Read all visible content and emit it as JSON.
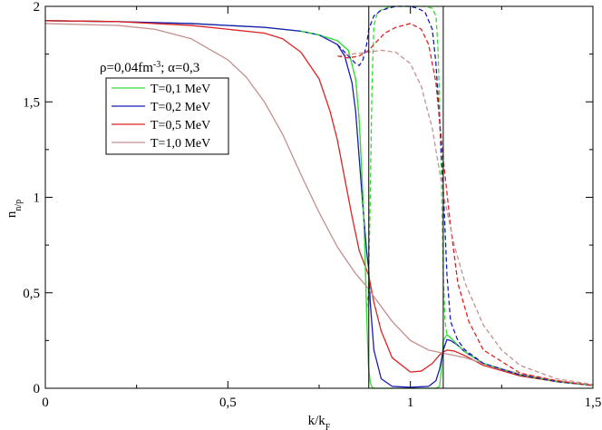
{
  "chart_data": {
    "type": "line",
    "title": "",
    "xlabel": "k/k",
    "xlabel_sub": "F",
    "ylabel": "n",
    "ylabel_sub": "n/p",
    "xlim": [
      0,
      1.5
    ],
    "ylim": [
      0,
      2
    ],
    "x_ticks": [
      0,
      0.5,
      1,
      1.5
    ],
    "x_tick_labels": [
      "0",
      "0,5",
      "1",
      "1,5"
    ],
    "y_ticks": [
      0,
      0.5,
      1,
      1.5,
      2
    ],
    "y_tick_labels": [
      "0",
      "0,5",
      "1",
      "1,5",
      "2"
    ],
    "grid": false,
    "annotation": {
      "rho": "ρ=0,04fm",
      "rho_exp": "-3",
      "alpha": "; α=0,3"
    },
    "legend_position": "upper-left",
    "vertical_lines": [
      0.886,
      1.09
    ],
    "colors": {
      "T01": "#33dd33",
      "T02": "#1a1ab8",
      "T05": "#dd2222",
      "T10": "#c49090",
      "vline": "#000000"
    },
    "series": [
      {
        "name": "T=0,1 MeV",
        "color": "#33dd33",
        "style": "solid",
        "x": [
          0,
          0.2,
          0.4,
          0.6,
          0.7,
          0.75,
          0.8,
          0.83,
          0.85,
          0.86,
          0.87,
          0.875,
          0.88,
          0.885,
          0.89,
          0.895,
          0.9,
          0.92,
          0.95,
          1.0,
          1.05,
          1.07,
          1.08,
          1.085,
          1.09,
          1.1,
          1.11,
          1.13,
          1.15,
          1.2,
          1.3,
          1.4,
          1.5
        ],
        "y": [
          1.925,
          1.92,
          1.91,
          1.89,
          1.87,
          1.85,
          1.82,
          1.77,
          1.62,
          1.4,
          1.0,
          0.75,
          0.4,
          0.12,
          0.03,
          0.005,
          0.0,
          0.0,
          0.0,
          0.0,
          0.0,
          0.0,
          0.01,
          0.1,
          0.25,
          0.28,
          0.265,
          0.225,
          0.19,
          0.13,
          0.07,
          0.035,
          0.015
        ]
      },
      {
        "name": "T=0,2 MeV",
        "color": "#1a1ab8",
        "style": "solid",
        "x": [
          0,
          0.2,
          0.4,
          0.6,
          0.7,
          0.75,
          0.8,
          0.82,
          0.84,
          0.85,
          0.86,
          0.87,
          0.88,
          0.886,
          0.89,
          0.9,
          0.92,
          0.95,
          1.0,
          1.05,
          1.07,
          1.08,
          1.09,
          1.1,
          1.11,
          1.13,
          1.15,
          1.2,
          1.3,
          1.4,
          1.5
        ],
        "y": [
          1.925,
          1.92,
          1.91,
          1.89,
          1.87,
          1.85,
          1.8,
          1.74,
          1.6,
          1.45,
          1.2,
          0.95,
          0.72,
          0.62,
          0.45,
          0.2,
          0.05,
          0.01,
          0.005,
          0.01,
          0.04,
          0.1,
          0.2,
          0.255,
          0.25,
          0.225,
          0.19,
          0.13,
          0.07,
          0.035,
          0.015
        ]
      },
      {
        "name": "T=0,5 MeV",
        "color": "#dd2222",
        "style": "solid",
        "x": [
          0,
          0.2,
          0.4,
          0.6,
          0.65,
          0.7,
          0.75,
          0.78,
          0.8,
          0.82,
          0.84,
          0.86,
          0.88,
          0.886,
          0.9,
          0.92,
          0.95,
          1.0,
          1.03,
          1.06,
          1.08,
          1.09,
          1.1,
          1.12,
          1.15,
          1.2,
          1.3,
          1.4,
          1.5
        ],
        "y": [
          1.925,
          1.92,
          1.9,
          1.86,
          1.83,
          1.76,
          1.62,
          1.45,
          1.3,
          1.1,
          0.9,
          0.72,
          0.62,
          0.59,
          0.45,
          0.3,
          0.16,
          0.085,
          0.09,
          0.13,
          0.175,
          0.19,
          0.2,
          0.195,
          0.17,
          0.12,
          0.065,
          0.035,
          0.015
        ]
      },
      {
        "name": "T=1,0 MeV",
        "color": "#c49090",
        "style": "solid",
        "x": [
          0,
          0.2,
          0.3,
          0.4,
          0.5,
          0.55,
          0.6,
          0.65,
          0.7,
          0.75,
          0.8,
          0.85,
          0.886,
          0.9,
          0.95,
          1.0,
          1.05,
          1.1,
          1.15,
          1.2,
          1.3,
          1.4,
          1.5
        ],
        "y": [
          1.91,
          1.9,
          1.88,
          1.83,
          1.72,
          1.63,
          1.5,
          1.33,
          1.12,
          0.92,
          0.74,
          0.6,
          0.52,
          0.48,
          0.35,
          0.25,
          0.2,
          0.18,
          0.16,
          0.13,
          0.075,
          0.04,
          0.015
        ]
      },
      {
        "name": "",
        "color": "#33dd33",
        "style": "dashed",
        "x": [
          0.7,
          0.75,
          0.8,
          0.83,
          0.85,
          0.86,
          0.87,
          0.875,
          0.88,
          0.885,
          0.89,
          0.895,
          0.9,
          0.91,
          0.93,
          0.95,
          1.0,
          1.04,
          1.06,
          1.07,
          1.075,
          1.08,
          1.085,
          1.09,
          1.095,
          1.1,
          1.11,
          1.13,
          1.15,
          1.2,
          1.3,
          1.4,
          1.5
        ],
        "y": [
          1.87,
          1.85,
          1.82,
          1.77,
          1.62,
          1.4,
          1.0,
          0.75,
          0.4,
          0.5,
          1.0,
          1.6,
          1.9,
          1.97,
          1.99,
          2.0,
          2.0,
          2.0,
          1.99,
          1.95,
          1.8,
          1.5,
          1.1,
          0.6,
          0.35,
          0.28,
          0.265,
          0.225,
          0.19,
          0.13,
          0.07,
          0.035,
          0.015
        ]
      },
      {
        "name": "",
        "color": "#1a1ab8",
        "style": "dashed",
        "x": [
          0.8,
          0.82,
          0.84,
          0.85,
          0.86,
          0.87,
          0.88,
          0.886,
          0.9,
          0.92,
          0.94,
          0.96,
          0.98,
          1.0,
          1.02,
          1.04,
          1.06,
          1.07,
          1.08,
          1.09,
          1.1,
          1.11,
          1.13,
          1.15,
          1.2,
          1.3,
          1.4,
          1.5
        ],
        "y": [
          1.8,
          1.76,
          1.72,
          1.7,
          1.69,
          1.72,
          1.8,
          1.88,
          1.95,
          1.98,
          1.99,
          2.0,
          2.0,
          2.0,
          1.99,
          1.97,
          1.88,
          1.7,
          1.4,
          1.05,
          0.6,
          0.35,
          0.25,
          0.2,
          0.13,
          0.07,
          0.035,
          0.015
        ]
      },
      {
        "name": "",
        "color": "#dd2222",
        "style": "dashed",
        "x": [
          0.8,
          0.83,
          0.86,
          0.886,
          0.9,
          0.93,
          0.96,
          1.0,
          1.03,
          1.05,
          1.07,
          1.09,
          1.11,
          1.13,
          1.16,
          1.2,
          1.3,
          1.4,
          1.5
        ],
        "y": [
          1.74,
          1.73,
          1.74,
          1.77,
          1.8,
          1.86,
          1.89,
          1.91,
          1.88,
          1.8,
          1.6,
          1.2,
          0.85,
          0.55,
          0.35,
          0.2,
          0.08,
          0.04,
          0.015
        ]
      },
      {
        "name": "",
        "color": "#c49090",
        "style": "dashed",
        "x": [
          0.8,
          0.84,
          0.886,
          0.92,
          0.96,
          1.0,
          1.03,
          1.06,
          1.09,
          1.12,
          1.15,
          1.2,
          1.25,
          1.3,
          1.4,
          1.5
        ],
        "y": [
          1.74,
          1.75,
          1.76,
          1.77,
          1.76,
          1.7,
          1.58,
          1.36,
          1.02,
          0.75,
          0.55,
          0.33,
          0.2,
          0.12,
          0.05,
          0.02
        ]
      }
    ]
  }
}
